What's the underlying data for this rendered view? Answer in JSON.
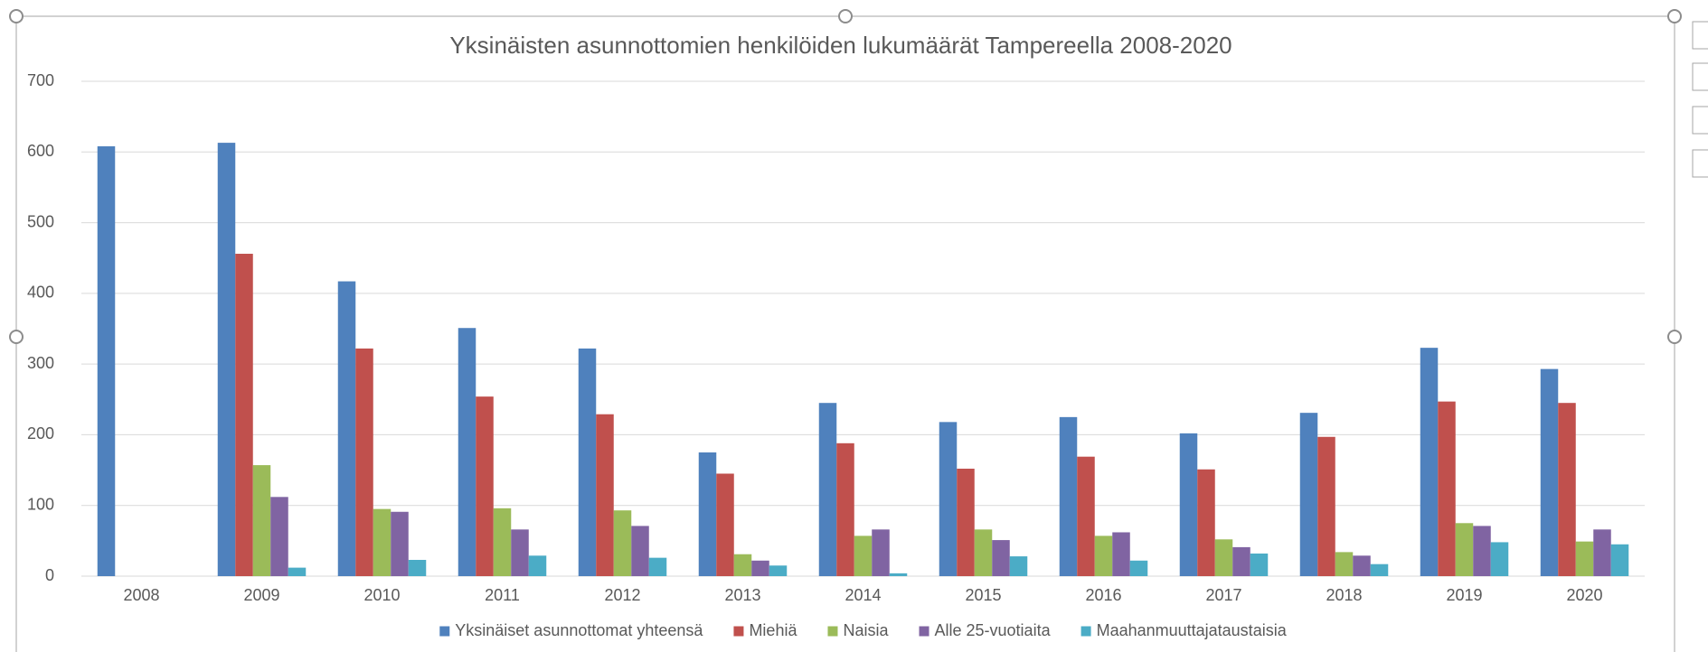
{
  "chart_data": {
    "type": "bar",
    "title": "Yksinäisten asunnottomien henkilöiden lukumäärät Tampereella 2008-2020",
    "categories": [
      "2008",
      "2009",
      "2010",
      "2011",
      "2012",
      "2013",
      "2014",
      "2015",
      "2016",
      "2017",
      "2018",
      "2019",
      "2020"
    ],
    "series": [
      {
        "name": "Yksinäiset asunnottomat yhteensä",
        "color": "#4f81bd",
        "values": [
          608,
          613,
          417,
          351,
          322,
          175,
          245,
          218,
          225,
          202,
          231,
          323,
          293
        ]
      },
      {
        "name": "Miehiä",
        "color": "#c0504d",
        "values": [
          null,
          456,
          322,
          254,
          229,
          145,
          188,
          152,
          169,
          151,
          197,
          247,
          245
        ]
      },
      {
        "name": "Naisia",
        "color": "#9bbb59",
        "values": [
          null,
          157,
          95,
          96,
          93,
          31,
          57,
          66,
          57,
          52,
          34,
          75,
          49
        ]
      },
      {
        "name": "Alle 25-vuotiaita",
        "color": "#8064a2",
        "values": [
          null,
          112,
          91,
          66,
          71,
          22,
          66,
          51,
          62,
          41,
          29,
          71,
          66
        ]
      },
      {
        "name": "Maahanmuuttajataustaisia",
        "color": "#4bacc6",
        "values": [
          null,
          12,
          23,
          29,
          26,
          15,
          4,
          28,
          22,
          32,
          17,
          48,
          45
        ]
      }
    ],
    "ylim": [
      0,
      700
    ],
    "yticks": [
      0,
      100,
      200,
      300,
      400,
      500,
      600,
      700
    ],
    "grid": true,
    "legend": "bottom"
  }
}
